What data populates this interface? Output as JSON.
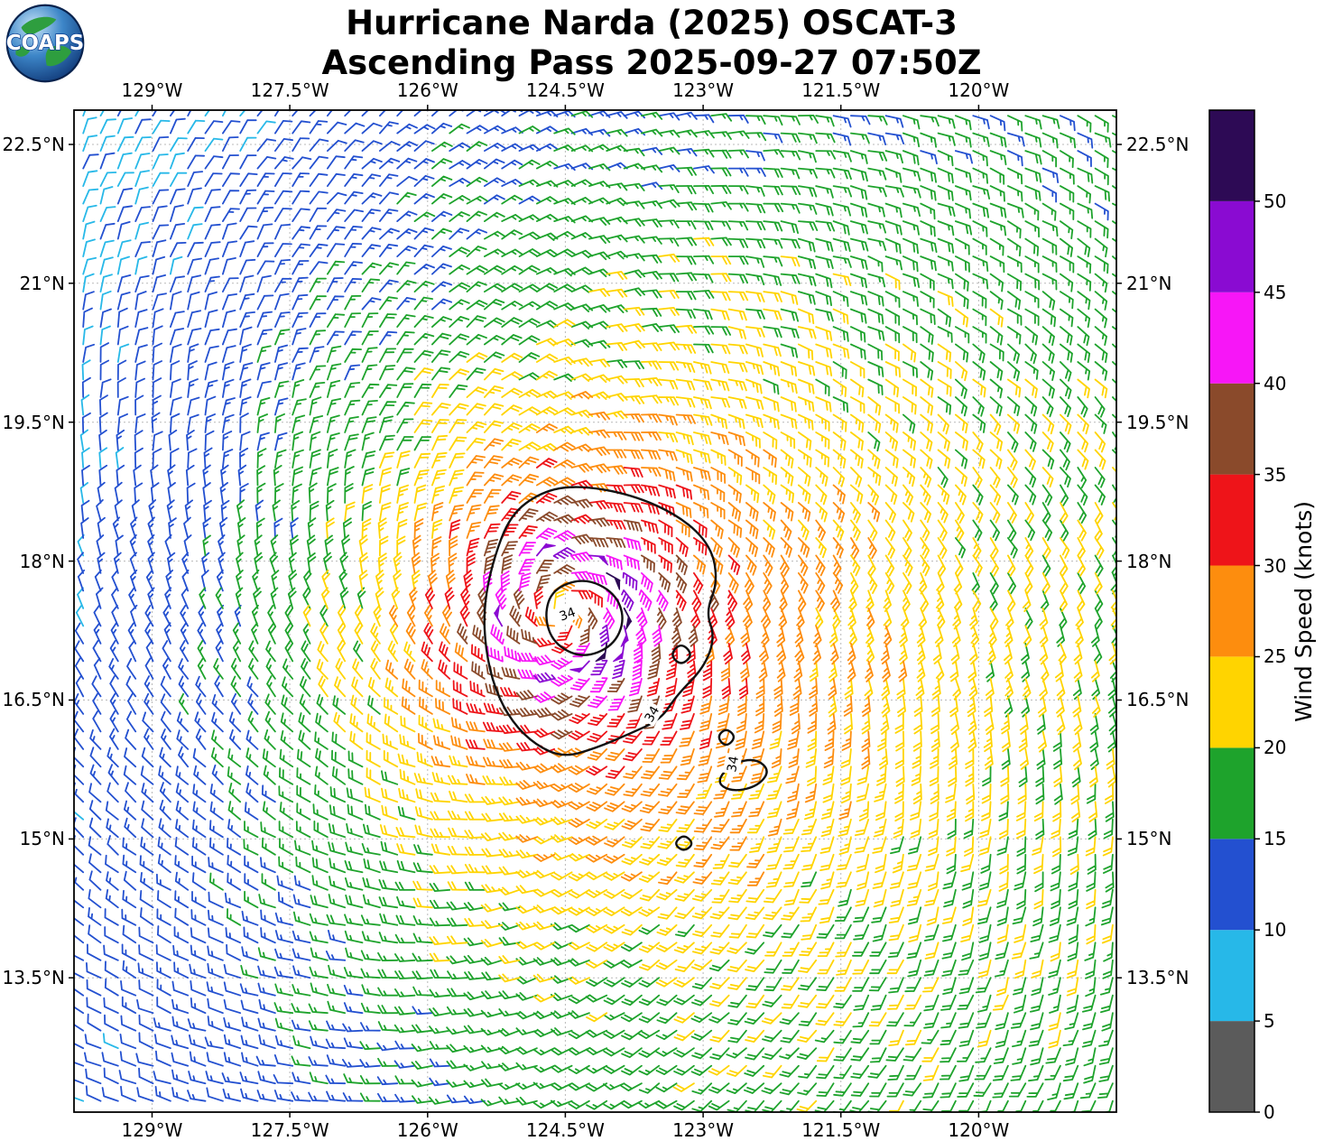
{
  "title": {
    "line1": "Hurricane Narda (2025) OSCAT-3",
    "line2": "Ascending Pass 2025-09-27 07:50Z"
  },
  "logo": {
    "text": "COAPS"
  },
  "axes": {
    "x_ticks": [
      {
        "label": "129°W",
        "lon": -129.0
      },
      {
        "label": "127.5°W",
        "lon": -127.5
      },
      {
        "label": "126°W",
        "lon": -126.0
      },
      {
        "label": "124.5°W",
        "lon": -124.5
      },
      {
        "label": "123°W",
        "lon": -123.0
      },
      {
        "label": "121.5°W",
        "lon": -121.5
      },
      {
        "label": "120°W",
        "lon": -120.0
      }
    ],
    "y_ticks": [
      {
        "label": "22.5°N",
        "lat": 22.5
      },
      {
        "label": "21°N",
        "lat": 21.0
      },
      {
        "label": "19.5°N",
        "lat": 19.5
      },
      {
        "label": "18°N",
        "lat": 18.0
      },
      {
        "label": "16.5°N",
        "lat": 16.5
      },
      {
        "label": "15°N",
        "lat": 15.0
      },
      {
        "label": "13.5°N",
        "lat": 13.5
      }
    ]
  },
  "colorbar": {
    "title": "Wind Speed (knots)",
    "range": [
      0,
      55
    ],
    "tick_values": [
      0,
      5,
      10,
      15,
      20,
      25,
      30,
      35,
      40,
      45,
      50
    ],
    "tick_labels": [
      "0",
      "5",
      "10",
      "15",
      "20",
      "25",
      "30",
      "35",
      "40",
      "45",
      "50"
    ],
    "segments": [
      {
        "from": 0,
        "to": 5,
        "color": "#5b5b5b"
      },
      {
        "from": 5,
        "to": 10,
        "color": "#27b8e8"
      },
      {
        "from": 10,
        "to": 15,
        "color": "#2350d0"
      },
      {
        "from": 15,
        "to": 20,
        "color": "#1ea32c"
      },
      {
        "from": 20,
        "to": 25,
        "color": "#ffd400"
      },
      {
        "from": 25,
        "to": 30,
        "color": "#fd8d0e"
      },
      {
        "from": 30,
        "to": 35,
        "color": "#ee1419"
      },
      {
        "from": 35,
        "to": 40,
        "color": "#8a4a2b"
      },
      {
        "from": 40,
        "to": 45,
        "color": "#f716f7"
      },
      {
        "from": 45,
        "to": 50,
        "color": "#8a0bd2"
      },
      {
        "from": 50,
        "to": 55,
        "color": "#2d0a55"
      }
    ]
  },
  "chart_data": {
    "type": "wind_barb_map",
    "title": "Hurricane Narda (2025) OSCAT-3 Ascending Pass 2025-09-27 07:50Z",
    "storm": "Hurricane Narda (2025)",
    "instrument": "OSCAT-3",
    "pass": "Ascending Pass 2025-09-27 07:50Z",
    "units": "knots",
    "lon_range": [
      -129.85,
      -118.5
    ],
    "lat_range": [
      12.05,
      22.87
    ],
    "grid": {
      "spacing_deg": 0.19
    },
    "wind_model": {
      "center_lon": -124.55,
      "center_lat": 17.45,
      "max_wind_kt": 47,
      "radius_max_deg": 0.65,
      "eye_floor": 0.45,
      "outer_exponent": 0.52,
      "inflow_angle_deg": 22,
      "asymmetry_kt": 6,
      "asymmetry_dir_deg": -15
    },
    "contours_34kt": [
      {
        "points": [
          [
            -125.1,
            18.5
          ],
          [
            -124.76,
            18.75
          ],
          [
            -124.37,
            18.82
          ],
          [
            -123.78,
            18.72
          ],
          [
            -123.24,
            18.48
          ],
          [
            -122.91,
            18.16
          ],
          [
            -122.84,
            17.77
          ],
          [
            -122.97,
            17.45
          ],
          [
            -122.87,
            17.18
          ],
          [
            -122.99,
            16.85
          ],
          [
            -123.29,
            16.55
          ],
          [
            -123.46,
            16.29
          ],
          [
            -123.81,
            16.13
          ],
          [
            -124.17,
            15.98
          ],
          [
            -124.52,
            15.88
          ],
          [
            -124.82,
            16.01
          ],
          [
            -125.08,
            16.26
          ],
          [
            -125.27,
            16.62
          ],
          [
            -125.37,
            17.05
          ],
          [
            -125.39,
            17.5
          ],
          [
            -125.29,
            18.0
          ]
        ]
      },
      {
        "points": [
          [
            -124.64,
            17.7
          ],
          [
            -124.29,
            17.82
          ],
          [
            -123.96,
            17.66
          ],
          [
            -123.85,
            17.37
          ],
          [
            -123.98,
            17.08
          ],
          [
            -124.32,
            16.95
          ],
          [
            -124.63,
            17.11
          ],
          [
            -124.73,
            17.41
          ]
        ]
      },
      {
        "points": [
          [
            -123.24,
            17.12
          ],
          [
            -123.11,
            16.99
          ],
          [
            -123.24,
            16.87
          ],
          [
            -123.36,
            16.99
          ]
        ]
      },
      {
        "points": [
          [
            -122.75,
            16.2
          ],
          [
            -122.64,
            16.1
          ],
          [
            -122.75,
            15.99
          ],
          [
            -122.85,
            16.1
          ]
        ]
      },
      {
        "points": [
          [
            -122.86,
            15.62
          ],
          [
            -122.68,
            15.82
          ],
          [
            -122.42,
            15.87
          ],
          [
            -122.27,
            15.73
          ],
          [
            -122.42,
            15.56
          ],
          [
            -122.7,
            15.51
          ]
        ]
      },
      {
        "points": [
          [
            -123.21,
            15.05
          ],
          [
            -123.1,
            14.95
          ],
          [
            -123.21,
            14.86
          ],
          [
            -123.32,
            14.95
          ]
        ]
      }
    ],
    "contour_labels": [
      {
        "text": "34",
        "lon": -124.48,
        "lat": 17.43,
        "rot": -20
      },
      {
        "text": "34",
        "lon": -123.56,
        "lat": 16.35,
        "rot": -60
      },
      {
        "text": "34",
        "lon": -122.68,
        "lat": 15.81,
        "rot": -80
      }
    ]
  }
}
